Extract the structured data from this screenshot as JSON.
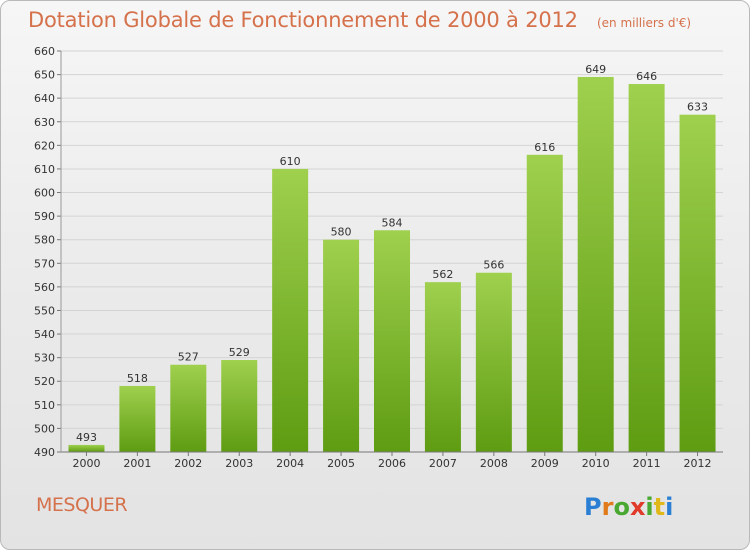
{
  "header": {
    "title": "Dotation Globale de Fonctionnement de 2000 à 2012",
    "unit": "(en milliers d'€)"
  },
  "footer": {
    "city": "MESQUER",
    "logo_letters": [
      "P",
      "r",
      "o",
      "x",
      "i",
      "t",
      "i"
    ],
    "logo_colors": [
      "#2a7fd4",
      "#e07a1a",
      "#49a832",
      "#e03a2a",
      "#49a832",
      "#e0b81a",
      "#2a7fd4"
    ]
  },
  "chart_data": {
    "type": "bar",
    "title": "Dotation Globale de Fonctionnement de 2000 à 2012",
    "subtitle": "(en milliers d'€)",
    "categories": [
      "2000",
      "2001",
      "2002",
      "2003",
      "2004",
      "2005",
      "2006",
      "2007",
      "2008",
      "2009",
      "2010",
      "2011",
      "2012"
    ],
    "values": [
      493,
      518,
      527,
      529,
      610,
      580,
      584,
      562,
      566,
      616,
      649,
      646,
      633
    ],
    "ylim": [
      490,
      660
    ],
    "yticks": [
      490,
      500,
      510,
      520,
      530,
      540,
      550,
      560,
      570,
      580,
      590,
      600,
      610,
      620,
      630,
      640,
      650,
      660
    ],
    "grid": true,
    "bar_color_top": "#9fd04e",
    "bar_color_bottom": "#5e9c12"
  }
}
